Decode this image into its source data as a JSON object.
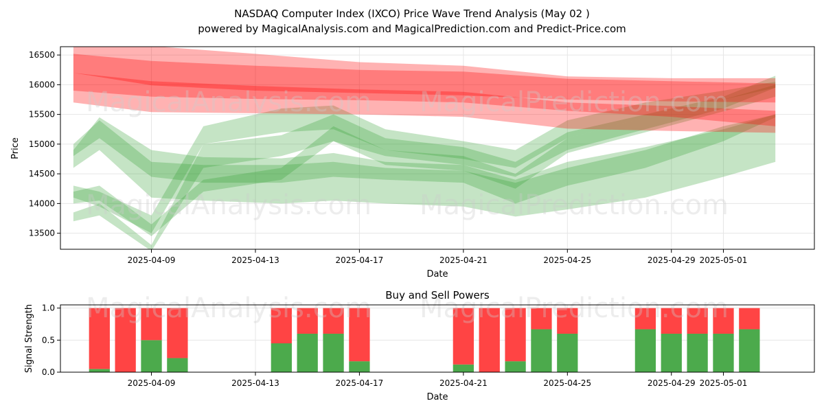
{
  "chart_data": [
    {
      "type": "area",
      "title": "NASDAQ Computer Index (IXCO) Price Wave Trend Analysis (May 02 )",
      "subtitle": "powered by MagicalAnalysis.com and MagicalPrediction.com and Predict-Price.com",
      "xlabel": "Date",
      "ylabel": "Price",
      "ylim": [
        13230,
        16640
      ],
      "xlim": [
        "2025-04-05T12:00",
        "2025-05-04T12:00"
      ],
      "x_ticks": [
        "2025-04-09",
        "2025-04-13",
        "2025-04-17",
        "2025-04-21",
        "2025-04-25",
        "2025-04-29",
        "2025-05-01"
      ],
      "y_ticks": [
        13500,
        14000,
        14500,
        15000,
        15500,
        16000,
        16500
      ],
      "grid": true,
      "colors": {
        "sell": "#ff0000",
        "buy": "#2e9e2e"
      },
      "sell_bands": [
        {
          "name": "sell-band-1",
          "dates": [
            "2025-04-06",
            "2025-04-09",
            "2025-04-13",
            "2025-04-17",
            "2025-04-21",
            "2025-04-25",
            "2025-04-29",
            "2025-05-03"
          ],
          "upper": [
            16520,
            16400,
            16320,
            16250,
            16220,
            16100,
            16060,
            16020
          ],
          "lower": [
            16200,
            15990,
            15900,
            15860,
            15820,
            15750,
            15720,
            15700
          ]
        },
        {
          "name": "sell-band-2",
          "dates": [
            "2025-04-06",
            "2025-04-09",
            "2025-04-13",
            "2025-04-17",
            "2025-04-21",
            "2025-04-25",
            "2025-04-29",
            "2025-05-03"
          ],
          "upper": [
            16700,
            16650,
            16520,
            16380,
            16320,
            16140,
            16110,
            16110
          ],
          "lower": [
            15700,
            15540,
            15520,
            15500,
            15460,
            15260,
            15220,
            15190
          ]
        },
        {
          "name": "sell-band-3",
          "dates": [
            "2025-04-06",
            "2025-04-09",
            "2025-04-13",
            "2025-04-17",
            "2025-04-21",
            "2025-04-25",
            "2025-04-29",
            "2025-05-03"
          ],
          "upper": [
            16200,
            16060,
            15980,
            15920,
            15880,
            15700,
            15640,
            15560
          ],
          "lower": [
            15900,
            15800,
            15760,
            15740,
            15700,
            15560,
            15460,
            15300
          ]
        }
      ],
      "buy_bands": [
        {
          "name": "buy-band-1",
          "dates": [
            "2025-04-06",
            "2025-04-07",
            "2025-04-09",
            "2025-04-11",
            "2025-04-14",
            "2025-04-16",
            "2025-04-18",
            "2025-04-21",
            "2025-04-23",
            "2025-04-25",
            "2025-04-28",
            "2025-05-01",
            "2025-05-03"
          ],
          "upper": [
            14900,
            15450,
            14900,
            14780,
            14760,
            14850,
            14700,
            14650,
            14400,
            14700,
            14950,
            15250,
            15500
          ],
          "lower": [
            14800,
            15100,
            14450,
            14350,
            14350,
            14450,
            14400,
            14350,
            14000,
            14300,
            14600,
            15050,
            15450
          ]
        },
        {
          "name": "buy-band-2",
          "dates": [
            "2025-04-06",
            "2025-04-07",
            "2025-04-09",
            "2025-04-11",
            "2025-04-14",
            "2025-04-16",
            "2025-04-18",
            "2025-04-21",
            "2025-04-23",
            "2025-04-25",
            "2025-04-28",
            "2025-05-01",
            "2025-05-03"
          ],
          "upper": [
            15000,
            15400,
            14700,
            14650,
            14650,
            14700,
            14600,
            14550,
            14350,
            14600,
            14900,
            15300,
            15500
          ],
          "lower": [
            14600,
            14900,
            14100,
            14050,
            14000,
            14050,
            14000,
            13950,
            13780,
            13900,
            14100,
            14450,
            14700
          ]
        },
        {
          "name": "buy-band-3",
          "dates": [
            "2025-04-06",
            "2025-04-07",
            "2025-04-09",
            "2025-04-11",
            "2025-04-14",
            "2025-04-16",
            "2025-04-18",
            "2025-04-21",
            "2025-04-23",
            "2025-04-25",
            "2025-04-28",
            "2025-05-01",
            "2025-05-03"
          ],
          "upper": [
            14300,
            14200,
            13800,
            15300,
            15600,
            15650,
            15250,
            15050,
            14900,
            15400,
            15700,
            15900,
            16050
          ],
          "lower": [
            14100,
            13950,
            13500,
            15000,
            15200,
            15250,
            14900,
            14750,
            14600,
            15100,
            15450,
            15750,
            15950
          ]
        },
        {
          "name": "buy-band-4",
          "dates": [
            "2025-04-06",
            "2025-04-07",
            "2025-04-09",
            "2025-04-11",
            "2025-04-14",
            "2025-04-16",
            "2025-04-18",
            "2025-04-21",
            "2025-04-23",
            "2025-04-25",
            "2025-04-28",
            "2025-05-01",
            "2025-05-03"
          ],
          "upper": [
            13850,
            14000,
            13300,
            15000,
            15150,
            15500,
            15100,
            14950,
            14700,
            15200,
            15500,
            15800,
            16150
          ],
          "lower": [
            13700,
            13800,
            13200,
            14600,
            14800,
            15050,
            14800,
            14650,
            14450,
            14900,
            15250,
            15600,
            15950
          ]
        },
        {
          "name": "buy-band-5",
          "dates": [
            "2025-04-06",
            "2025-04-07",
            "2025-04-09",
            "2025-04-11",
            "2025-04-14",
            "2025-04-16",
            "2025-04-18",
            "2025-04-21",
            "2025-04-23",
            "2025-04-25",
            "2025-04-28",
            "2025-05-01",
            "2025-05-03"
          ],
          "upper": [
            14200,
            14300,
            13650,
            14400,
            14600,
            15300,
            14900,
            14800,
            14500,
            15100,
            15450,
            15750,
            16000
          ],
          "lower": [
            14000,
            14050,
            13450,
            14200,
            14400,
            15050,
            14650,
            14550,
            14250,
            14850,
            15200,
            15550,
            15800
          ]
        }
      ]
    },
    {
      "type": "bar",
      "title": "Buy and Sell Powers",
      "xlabel": "Date",
      "ylabel": "Signal Strength",
      "ylim": [
        0,
        1.05
      ],
      "xlim": [
        "2025-04-05T12:00",
        "2025-05-04T12:00"
      ],
      "x_ticks": [
        "2025-04-09",
        "2025-04-13",
        "2025-04-17",
        "2025-04-21",
        "2025-04-25",
        "2025-04-29",
        "2025-05-01"
      ],
      "y_ticks": [
        0.0,
        0.5,
        1.0
      ],
      "stacked": true,
      "colors": {
        "buy": "#4caa4c",
        "sell": "#ff4444"
      },
      "dates": [
        "2025-04-07",
        "2025-04-08",
        "2025-04-09",
        "2025-04-10",
        "2025-04-14",
        "2025-04-15",
        "2025-04-16",
        "2025-04-17",
        "2025-04-21",
        "2025-04-22",
        "2025-04-23",
        "2025-04-24",
        "2025-04-25",
        "2025-04-28",
        "2025-04-29",
        "2025-04-30",
        "2025-05-01",
        "2025-05-02"
      ],
      "series": [
        {
          "name": "Buy",
          "values": [
            0.05,
            0.0,
            0.5,
            0.22,
            0.45,
            0.6,
            0.6,
            0.17,
            0.12,
            0.0,
            0.17,
            0.67,
            0.6,
            0.67,
            0.6,
            0.6,
            0.6,
            0.67
          ]
        },
        {
          "name": "Sell",
          "values": [
            0.95,
            1.0,
            0.5,
            0.78,
            0.55,
            0.4,
            0.4,
            0.83,
            0.88,
            1.0,
            0.83,
            0.33,
            0.4,
            0.33,
            0.4,
            0.4,
            0.4,
            0.33
          ]
        }
      ]
    }
  ],
  "watermarks": [
    "MagicalAnalysis.com",
    "MagicalPrediction.com",
    "MagicalAnalysis.com",
    "MagicalPrediction.com",
    "MagicalAnalysis.com",
    "MagicalPrediction.com"
  ]
}
